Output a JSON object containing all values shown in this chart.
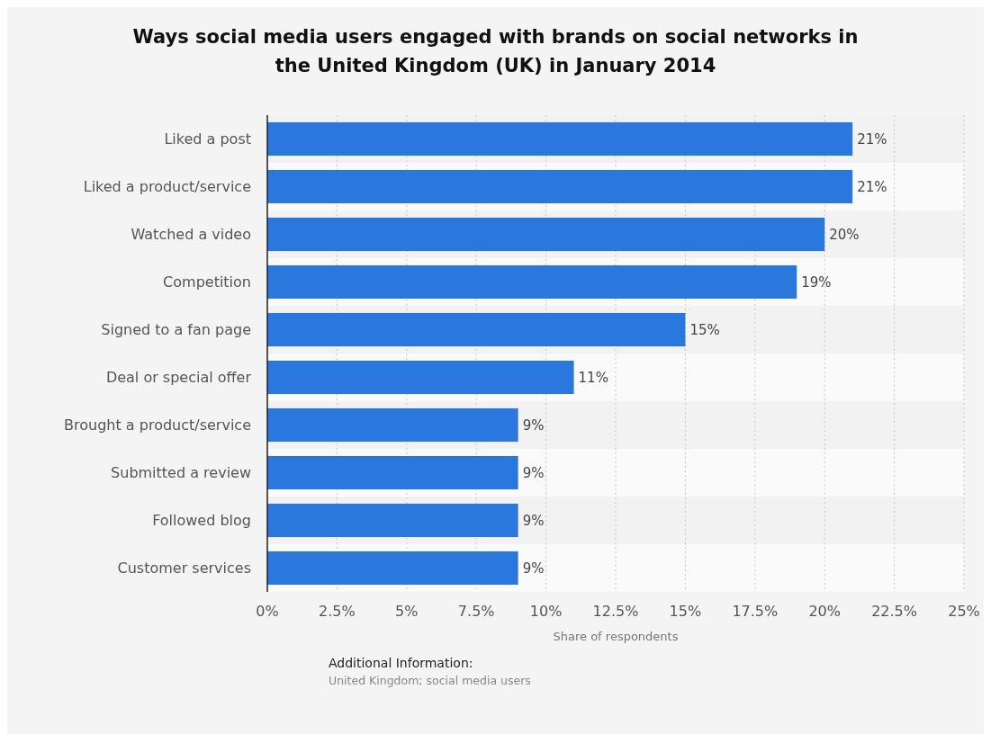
{
  "chart_data": {
    "type": "bar",
    "orientation": "horizontal",
    "title": "Ways social media users engaged with brands on social networks in the United Kingdom (UK) in January 2014",
    "xlabel": "Share of respondents",
    "categories": [
      "Liked a post",
      "Liked a product/service",
      "Watched a video",
      "Competition",
      "Signed to a fan page",
      "Deal or special offer",
      "Brought a product/service",
      "Submitted a review",
      "Followed blog",
      "Customer services"
    ],
    "values": [
      21,
      21,
      20,
      19,
      15,
      11,
      9,
      9,
      9,
      9
    ],
    "value_labels": [
      "21%",
      "21%",
      "20%",
      "19%",
      "15%",
      "11%",
      "9%",
      "9%",
      "9%",
      "9%"
    ],
    "color": "#2a78de",
    "xlim": [
      0,
      25
    ],
    "xticks": [
      {
        "value": 0,
        "label": "0%"
      },
      {
        "value": 2.5,
        "label": "2.5%"
      },
      {
        "value": 5,
        "label": "5%"
      },
      {
        "value": 7.5,
        "label": "7.5%"
      },
      {
        "value": 10,
        "label": "10%"
      },
      {
        "value": 12.5,
        "label": "12.5%"
      },
      {
        "value": 15,
        "label": "15%"
      },
      {
        "value": 17.5,
        "label": "17.5%"
      },
      {
        "value": 20,
        "label": "20%"
      },
      {
        "value": 22.5,
        "label": "22.5%"
      },
      {
        "value": 25,
        "label": "25%"
      }
    ],
    "grid": "x",
    "annotations": [
      "Additional Information:",
      "United Kingdom; social media users"
    ]
  }
}
